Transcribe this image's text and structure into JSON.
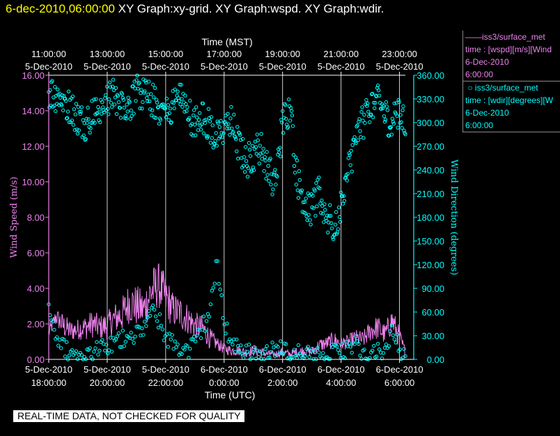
{
  "header": {
    "timestamp": "6-dec-2010,06:00:00",
    "graphs": "XY Graph:xy-grid.  XY Graph:wspd.  XY Graph:wdir."
  },
  "legend": {
    "wspd": {
      "name": "iss3/surface_met",
      "field": "time : [wspd][m/s][Wind",
      "date": "6-Dec-2010",
      "time": "6:00:00"
    },
    "wdir": {
      "name": "iss3/surface_met",
      "field": "time : [wdir][degrees][W",
      "date": "6-Dec-2010",
      "time": "6:00:00"
    }
  },
  "footer": "REAL-TIME DATA, NOT CHECKED FOR QUALITY",
  "colors": {
    "wspd": "#ee82ee",
    "wdir": "#00ffff",
    "grid": "#ffffff",
    "header_timestamp": "#ffff00"
  },
  "chart_data": {
    "type": "line",
    "top_axis": {
      "label": "Time (MST)",
      "ticks": [
        {
          "time": "11:00:00",
          "date": "5-Dec-2010"
        },
        {
          "time": "13:00:00",
          "date": "5-Dec-2010"
        },
        {
          "time": "15:00:00",
          "date": "5-Dec-2010"
        },
        {
          "time": "17:00:00",
          "date": "5-Dec-2010"
        },
        {
          "time": "19:00:00",
          "date": "5-Dec-2010"
        },
        {
          "time": "21:00:00",
          "date": "5-Dec-2010"
        },
        {
          "time": "23:00:00",
          "date": "5-Dec-2010"
        }
      ]
    },
    "bottom_axis": {
      "label": "Time (UTC)",
      "ticks": [
        {
          "date": "5-Dec-2010",
          "time": "18:00:00"
        },
        {
          "date": "5-Dec-2010",
          "time": "20:00:00"
        },
        {
          "date": "5-Dec-2010",
          "time": "22:00:00"
        },
        {
          "date": "6-Dec-2010",
          "time": "0:00:00"
        },
        {
          "date": "6-Dec-2010",
          "time": "2:00:00"
        },
        {
          "date": "6-Dec-2010",
          "time": "4:00:00"
        },
        {
          "date": "6-Dec-2010",
          "time": "6:00:00"
        }
      ]
    },
    "x_range_utc_hours": [
      18,
      30.2
    ],
    "left_axis": {
      "label": "Wind Speed (m/s)",
      "ylim": [
        0,
        16
      ],
      "ticks": [
        "0.00",
        "2.00",
        "4.00",
        "6.00",
        "8.00",
        "10.00",
        "12.00",
        "14.00",
        "16.00"
      ]
    },
    "right_axis": {
      "label": "Wind Direction (degrees)",
      "ylim": [
        0,
        360
      ],
      "ticks": [
        "0.00",
        "30.00",
        "60.00",
        "90.00",
        "120.00",
        "150.00",
        "180.00",
        "210.00",
        "240.00",
        "270.00",
        "300.00",
        "330.00",
        "360.00"
      ]
    },
    "series": [
      {
        "name": "iss3/surface_met wspd",
        "axis": "left",
        "x_utc_hours": [
          18.0,
          18.25,
          18.5,
          18.75,
          19.0,
          19.25,
          19.5,
          19.75,
          20.0,
          20.25,
          20.5,
          20.75,
          21.0,
          21.25,
          21.5,
          21.75,
          22.0,
          22.25,
          22.5,
          22.75,
          23.0,
          23.25,
          23.5,
          23.75,
          24.0,
          24.25,
          24.5,
          24.75,
          25.0,
          25.25,
          25.5,
          25.75,
          26.0,
          26.25,
          26.5,
          26.75,
          27.0,
          27.25,
          27.5,
          27.75,
          28.0,
          28.25,
          28.5,
          28.75,
          29.0,
          29.25,
          29.5,
          29.75,
          30.0,
          30.2
        ],
        "values": [
          1.5,
          2.4,
          1.9,
          1.6,
          1.7,
          1.8,
          2.0,
          1.8,
          1.9,
          2.3,
          2.5,
          3.2,
          3.0,
          2.8,
          3.8,
          4.2,
          3.5,
          2.8,
          2.6,
          2.3,
          1.9,
          1.8,
          1.2,
          0.9,
          0.6,
          0.5,
          0.5,
          0.4,
          0.5,
          0.4,
          0.3,
          0.3,
          0.4,
          0.3,
          0.4,
          0.5,
          0.4,
          0.8,
          0.9,
          1.1,
          0.9,
          1.0,
          1.2,
          1.1,
          1.6,
          1.8,
          1.4,
          2.2,
          1.2,
          0.4
        ],
        "amplitude": [
          0.4,
          0.5,
          0.7,
          0.6,
          0.6,
          0.7,
          0.8,
          0.7,
          0.8,
          0.9,
          1.0,
          1.2,
          1.2,
          1.1,
          1.4,
          1.3,
          1.3,
          1.0,
          1.0,
          0.9,
          0.8,
          0.7,
          0.6,
          0.4,
          0.3,
          0.3,
          0.3,
          0.3,
          0.3,
          0.3,
          0.2,
          0.2,
          0.3,
          0.2,
          0.3,
          0.3,
          0.3,
          0.4,
          0.4,
          0.5,
          0.4,
          0.4,
          0.5,
          0.5,
          0.6,
          0.7,
          0.6,
          0.8,
          0.6,
          0.3
        ]
      },
      {
        "name": "iss3/surface_met wdir",
        "axis": "right",
        "x_utc_hours": [
          18.0,
          18.25,
          18.5,
          18.75,
          19.0,
          19.25,
          19.5,
          19.75,
          20.0,
          20.25,
          20.5,
          20.75,
          21.0,
          21.25,
          21.5,
          21.75,
          22.0,
          22.25,
          22.5,
          22.75,
          23.0,
          23.25,
          23.5,
          23.75,
          24.0,
          24.25,
          24.5,
          24.75,
          25.0,
          25.25,
          25.5,
          25.75,
          26.0,
          26.25,
          26.5,
          26.75,
          27.0,
          27.25,
          27.5,
          27.75,
          28.0,
          28.25,
          28.5,
          28.75,
          29.0,
          29.25,
          29.5,
          29.75,
          30.0,
          30.2
        ],
        "values": [
          340,
          335,
          330,
          320,
          305,
          300,
          310,
          320,
          330,
          335,
          325,
          320,
          340,
          335,
          330,
          320,
          310,
          325,
          330,
          315,
          300,
          310,
          295,
          280,
          290,
          300,
          270,
          250,
          260,
          270,
          240,
          220,
          300,
          320,
          230,
          200,
          190,
          210,
          180,
          170,
          190,
          240,
          280,
          300,
          320,
          330,
          310,
          300,
          320,
          290
        ],
        "alt_values": [
          70,
          30,
          15,
          8,
          4,
          6,
          10,
          12,
          15,
          20,
          25,
          35,
          30,
          40,
          60,
          50,
          30,
          20,
          15,
          10,
          20,
          40,
          60,
          120,
          50,
          20,
          15,
          10,
          5,
          8,
          10,
          12,
          15,
          10,
          8,
          5,
          4,
          3,
          5,
          8,
          10,
          15,
          20,
          5,
          3,
          8,
          6,
          40,
          10,
          0
        ]
      }
    ]
  }
}
